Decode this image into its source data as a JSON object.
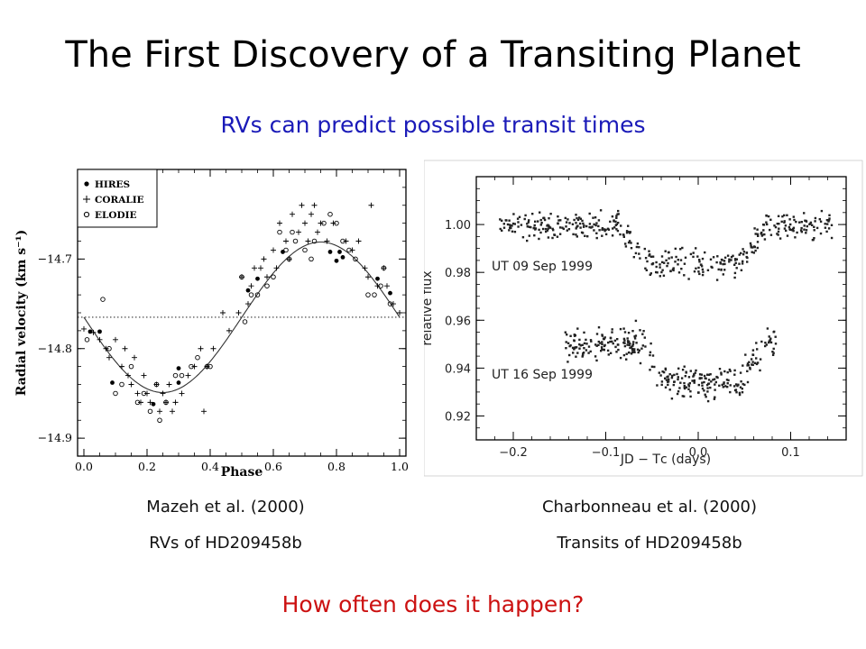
{
  "slide": {
    "title": "The First Discovery of a Transiting Planet",
    "subtitle": "RVs can predict possible transit times",
    "left_caption_1": "Mazeh et al. (2000)",
    "left_caption_2": "RVs of HD209458b",
    "right_caption_1": "Charbonneau et al. (2000)",
    "right_caption_2": "Transits of HD209458b",
    "question": "How often does it happen?",
    "colors": {
      "subtitle": "#1a1ab8",
      "question": "#cc1111"
    }
  },
  "chart_data": [
    {
      "type": "scatter",
      "xlabel": "Phase",
      "ylabel": "Radial velocity (km s⁻¹)",
      "xlim": [
        -0.02,
        1.02
      ],
      "ylim": [
        -14.92,
        -14.6
      ],
      "x_ticks": [
        0.0,
        0.2,
        0.4,
        0.6,
        0.8,
        1.0
      ],
      "x_tick_labels": [
        "0.0",
        "0.2",
        "0.4",
        "0.6",
        "0.8",
        "1.0"
      ],
      "y_ticks": [
        -14.7,
        -14.8,
        -14.9
      ],
      "y_tick_labels": [
        "−14.7",
        "−14.8",
        "−14.9"
      ],
      "legend": {
        "placement": "top-left",
        "entries": [
          "HIRES",
          "CORALIE",
          "ELODIE"
        ]
      },
      "reference_line": {
        "y": -14.765,
        "style": "dotted"
      },
      "model": {
        "type": "sine",
        "mean": -14.765,
        "amplitude": 0.084,
        "min_phase": 0.25
      },
      "series": [
        {
          "name": "HIRES",
          "marker": "filled-circle",
          "points": [
            [
              0.02,
              -14.781
            ],
            [
              0.05,
              -14.781
            ],
            [
              0.09,
              -14.838
            ],
            [
              0.22,
              -14.862
            ],
            [
              0.3,
              -14.822
            ],
            [
              0.3,
              -14.838
            ],
            [
              0.52,
              -14.735
            ],
            [
              0.55,
              -14.722
            ],
            [
              0.63,
              -14.692
            ],
            [
              0.78,
              -14.692
            ],
            [
              0.8,
              -14.702
            ],
            [
              0.81,
              -14.692
            ],
            [
              0.82,
              -14.698
            ],
            [
              0.93,
              -14.722
            ],
            [
              0.97,
              -14.738
            ]
          ]
        },
        {
          "name": "CORALIE",
          "marker": "plus",
          "points": [
            [
              0.0,
              -14.778
            ],
            [
              0.03,
              -14.782
            ],
            [
              0.05,
              -14.79
            ],
            [
              0.07,
              -14.8
            ],
            [
              0.08,
              -14.81
            ],
            [
              0.1,
              -14.79
            ],
            [
              0.12,
              -14.82
            ],
            [
              0.13,
              -14.8
            ],
            [
              0.14,
              -14.83
            ],
            [
              0.15,
              -14.84
            ],
            [
              0.16,
              -14.81
            ],
            [
              0.17,
              -14.85
            ],
            [
              0.18,
              -14.86
            ],
            [
              0.19,
              -14.83
            ],
            [
              0.2,
              -14.85
            ],
            [
              0.21,
              -14.86
            ],
            [
              0.23,
              -14.84
            ],
            [
              0.24,
              -14.87
            ],
            [
              0.25,
              -14.85
            ],
            [
              0.26,
              -14.86
            ],
            [
              0.27,
              -14.84
            ],
            [
              0.28,
              -14.87
            ],
            [
              0.29,
              -14.86
            ],
            [
              0.31,
              -14.85
            ],
            [
              0.33,
              -14.83
            ],
            [
              0.35,
              -14.82
            ],
            [
              0.37,
              -14.8
            ],
            [
              0.38,
              -14.87
            ],
            [
              0.39,
              -14.82
            ],
            [
              0.41,
              -14.8
            ],
            [
              0.44,
              -14.76
            ],
            [
              0.46,
              -14.78
            ],
            [
              0.49,
              -14.76
            ],
            [
              0.5,
              -14.72
            ],
            [
              0.52,
              -14.75
            ],
            [
              0.53,
              -14.73
            ],
            [
              0.54,
              -14.71
            ],
            [
              0.56,
              -14.71
            ],
            [
              0.57,
              -14.7
            ],
            [
              0.58,
              -14.72
            ],
            [
              0.6,
              -14.69
            ],
            [
              0.61,
              -14.71
            ],
            [
              0.62,
              -14.66
            ],
            [
              0.64,
              -14.68
            ],
            [
              0.65,
              -14.7
            ],
            [
              0.66,
              -14.65
            ],
            [
              0.68,
              -14.67
            ],
            [
              0.69,
              -14.64
            ],
            [
              0.7,
              -14.66
            ],
            [
              0.71,
              -14.68
            ],
            [
              0.72,
              -14.65
            ],
            [
              0.73,
              -14.64
            ],
            [
              0.74,
              -14.67
            ],
            [
              0.75,
              -14.66
            ],
            [
              0.77,
              -14.68
            ],
            [
              0.79,
              -14.66
            ],
            [
              0.83,
              -14.68
            ],
            [
              0.85,
              -14.69
            ],
            [
              0.87,
              -14.68
            ],
            [
              0.89,
              -14.71
            ],
            [
              0.9,
              -14.72
            ],
            [
              0.91,
              -14.64
            ],
            [
              0.93,
              -14.73
            ],
            [
              0.95,
              -14.71
            ],
            [
              0.96,
              -14.73
            ],
            [
              0.98,
              -14.75
            ],
            [
              1.0,
              -14.76
            ]
          ]
        },
        {
          "name": "ELODIE",
          "marker": "open-circle",
          "points": [
            [
              0.01,
              -14.79
            ],
            [
              0.06,
              -14.745
            ],
            [
              0.08,
              -14.8
            ],
            [
              0.1,
              -14.85
            ],
            [
              0.12,
              -14.84
            ],
            [
              0.15,
              -14.82
            ],
            [
              0.17,
              -14.86
            ],
            [
              0.19,
              -14.85
            ],
            [
              0.21,
              -14.87
            ],
            [
              0.23,
              -14.84
            ],
            [
              0.24,
              -14.88
            ],
            [
              0.26,
              -14.86
            ],
            [
              0.29,
              -14.83
            ],
            [
              0.31,
              -14.83
            ],
            [
              0.34,
              -14.82
            ],
            [
              0.36,
              -14.81
            ],
            [
              0.39,
              -14.82
            ],
            [
              0.4,
              -14.82
            ],
            [
              0.5,
              -14.72
            ],
            [
              0.51,
              -14.77
            ],
            [
              0.53,
              -14.74
            ],
            [
              0.55,
              -14.74
            ],
            [
              0.58,
              -14.73
            ],
            [
              0.6,
              -14.72
            ],
            [
              0.62,
              -14.67
            ],
            [
              0.64,
              -14.69
            ],
            [
              0.65,
              -14.7
            ],
            [
              0.66,
              -14.67
            ],
            [
              0.67,
              -14.68
            ],
            [
              0.7,
              -14.69
            ],
            [
              0.72,
              -14.7
            ],
            [
              0.73,
              -14.68
            ],
            [
              0.76,
              -14.66
            ],
            [
              0.78,
              -14.65
            ],
            [
              0.8,
              -14.66
            ],
            [
              0.82,
              -14.68
            ],
            [
              0.84,
              -14.69
            ],
            [
              0.86,
              -14.7
            ],
            [
              0.9,
              -14.74
            ],
            [
              0.92,
              -14.74
            ],
            [
              0.94,
              -14.73
            ],
            [
              0.95,
              -14.71
            ],
            [
              0.97,
              -14.75
            ]
          ]
        }
      ]
    },
    {
      "type": "scatter",
      "xlabel": "JD − Tᴄ (days)",
      "ylabel": "relative flux",
      "xlim": [
        -0.24,
        0.16
      ],
      "ylim": [
        0.91,
        1.02
      ],
      "x_ticks": [
        -0.2,
        -0.1,
        0.0,
        0.1
      ],
      "x_tick_labels": [
        "−0.2",
        "−0.1",
        "0.0",
        "0.1"
      ],
      "y_ticks": [
        1.0,
        0.98,
        0.96,
        0.94,
        0.92
      ],
      "y_tick_labels": [
        "1.00",
        "0.98",
        "0.96",
        "0.94",
        "0.92"
      ],
      "series": [
        {
          "name": "UT 09 Sep 1999",
          "x_range": [
            -0.215,
            0.145
          ],
          "baseline": 1.0,
          "transit_depth": 0.016,
          "ingress": [
            -0.085,
            -0.055
          ],
          "egress": [
            0.045,
            0.075
          ],
          "scatter": 0.004,
          "n_points": 420
        },
        {
          "name": "UT 16 Sep 1999",
          "x_range": [
            -0.145,
            0.085
          ],
          "baseline": 0.95,
          "transit_depth": 0.016,
          "ingress": [
            -0.06,
            -0.03
          ],
          "egress": [
            0.045,
            0.075
          ],
          "scatter": 0.0045,
          "n_points": 330
        }
      ]
    }
  ]
}
